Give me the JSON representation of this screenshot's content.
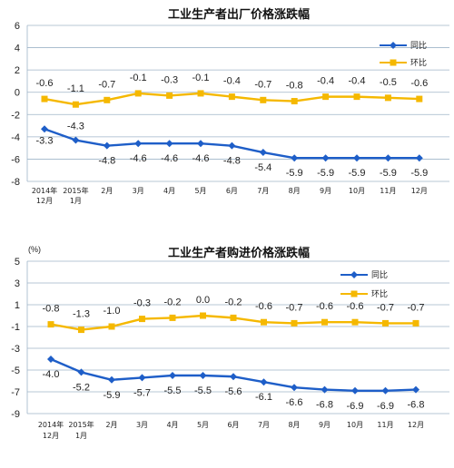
{
  "colors": {
    "yoy": "#1e5ec8",
    "mom": "#f5b800",
    "grid": "#9fb4c8"
  },
  "chart_data": [
    {
      "type": "line",
      "title": "工业生产者出厂价格涨跌幅",
      "ylim": [
        -8,
        6
      ],
      "yticks": [
        "6",
        "4",
        "2",
        "0",
        "-2",
        "-4",
        "-6",
        "-8"
      ],
      "categories": [
        [
          "2014年",
          "12月"
        ],
        [
          "2015年",
          "1月"
        ],
        [
          "2月"
        ],
        [
          "3月"
        ],
        [
          "4月"
        ],
        [
          "5月"
        ],
        [
          "6月"
        ],
        [
          "7月"
        ],
        [
          "8月"
        ],
        [
          "9月"
        ],
        [
          "10月"
        ],
        [
          "11月"
        ],
        [
          "12月"
        ]
      ],
      "series": [
        {
          "name": "同比",
          "marker": "diamond",
          "values": [
            -3.3,
            -4.3,
            -4.8,
            -4.6,
            -4.6,
            -4.6,
            -4.8,
            -5.4,
            -5.9,
            -5.9,
            -5.9,
            -5.9,
            -5.9
          ]
        },
        {
          "name": "环比",
          "marker": "square",
          "values": [
            -0.6,
            -1.1,
            -0.7,
            -0.1,
            -0.3,
            -0.1,
            -0.4,
            -0.7,
            -0.8,
            -0.4,
            -0.4,
            -0.5,
            -0.6
          ]
        }
      ],
      "grid": "horizontal",
      "legend": "top-right"
    },
    {
      "type": "line",
      "title": "工业生产者购进价格涨跌幅",
      "unit_label": "(%)",
      "ylim": [
        -9,
        5
      ],
      "yticks": [
        "5",
        "3",
        "1",
        "-1",
        "-3",
        "-5",
        "-7",
        "-9"
      ],
      "categories": [
        [
          "2014年",
          "12月"
        ],
        [
          "2015年",
          "1月"
        ],
        [
          "2月"
        ],
        [
          "3月"
        ],
        [
          "4月"
        ],
        [
          "5月"
        ],
        [
          "6月"
        ],
        [
          "7月"
        ],
        [
          "8月"
        ],
        [
          "9月"
        ],
        [
          "10月"
        ],
        [
          "11月"
        ],
        [
          "12月"
        ]
      ],
      "series": [
        {
          "name": "同比",
          "marker": "diamond",
          "values": [
            -4.0,
            -5.2,
            -5.9,
            -5.7,
            -5.5,
            -5.5,
            -5.6,
            -6.1,
            -6.6,
            -6.8,
            -6.9,
            -6.9,
            -6.8
          ]
        },
        {
          "name": "环比",
          "marker": "square",
          "values": [
            -0.8,
            -1.3,
            -1.0,
            -0.3,
            -0.2,
            0.0,
            -0.2,
            -0.6,
            -0.7,
            -0.6,
            -0.6,
            -0.7,
            -0.7
          ]
        }
      ],
      "grid": "horizontal",
      "legend": "top-right"
    }
  ]
}
